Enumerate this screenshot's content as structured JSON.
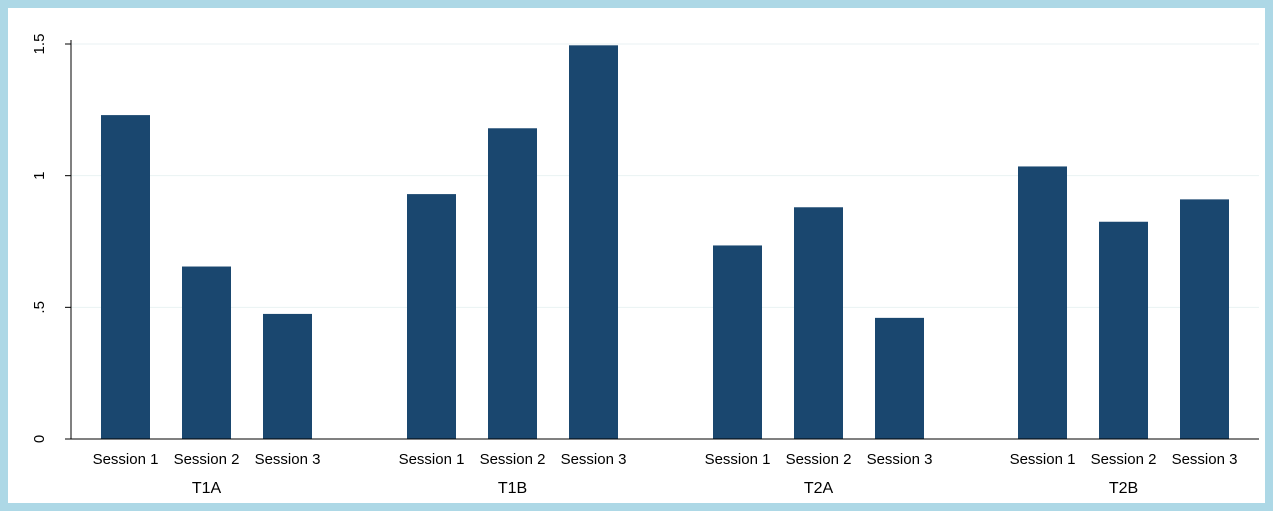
{
  "chart_data": {
    "type": "bar",
    "groups": [
      {
        "label": "T1A",
        "categories": [
          "Session 1",
          "Session 2",
          "Session 3"
        ],
        "values": [
          1.23,
          0.655,
          0.475
        ]
      },
      {
        "label": "T1B",
        "categories": [
          "Session 1",
          "Session 2",
          "Session 3"
        ],
        "values": [
          0.93,
          1.18,
          1.495
        ]
      },
      {
        "label": "T2A",
        "categories": [
          "Session 1",
          "Session 2",
          "Session 3"
        ],
        "values": [
          0.735,
          0.88,
          0.46
        ]
      },
      {
        "label": "T2B",
        "categories": [
          "Session 1",
          "Session 2",
          "Session 3"
        ],
        "values": [
          1.035,
          0.825,
          0.91
        ]
      }
    ],
    "y_ticks": [
      {
        "value": 0,
        "label": "0"
      },
      {
        "value": 0.5,
        "label": ".5"
      },
      {
        "value": 1,
        "label": "1"
      },
      {
        "value": 1.5,
        "label": "1.5"
      }
    ],
    "ylim": [
      0,
      1.5
    ],
    "grid": true,
    "title": "",
    "xlabel": "",
    "ylabel": "",
    "colors": {
      "bar": "#1a476f",
      "background": "#add8e6",
      "plot_background": "#ffffff",
      "grid": "#eaf2f3",
      "axis": "#000000"
    }
  }
}
